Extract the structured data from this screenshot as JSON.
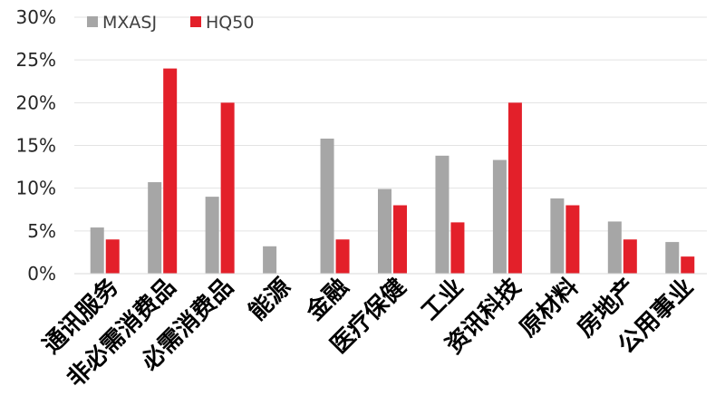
{
  "chart_data": {
    "type": "bar",
    "title": "",
    "xlabel": "",
    "ylabel": "",
    "ylim": [
      0,
      30
    ],
    "yticks": [
      "0%",
      "5%",
      "10%",
      "15%",
      "20%",
      "25%",
      "30%"
    ],
    "grid": true,
    "legend_position": "top-left",
    "categories": [
      "通讯服务",
      "非必需消费品",
      "必需消费品",
      "能源",
      "金融",
      "医疗保健",
      "工业",
      "资讯科技",
      "原材料",
      "房地产",
      "公用事业"
    ],
    "series": [
      {
        "name": "MXASJ",
        "color": "#a6a6a6",
        "values": [
          5.4,
          10.7,
          9.0,
          3.2,
          15.8,
          9.9,
          13.8,
          13.3,
          8.8,
          6.1,
          3.7
        ]
      },
      {
        "name": "HQ50",
        "color": "#e3202a",
        "values": [
          4,
          24,
          20,
          0,
          4,
          8,
          6,
          20,
          8,
          4,
          2
        ]
      }
    ]
  }
}
